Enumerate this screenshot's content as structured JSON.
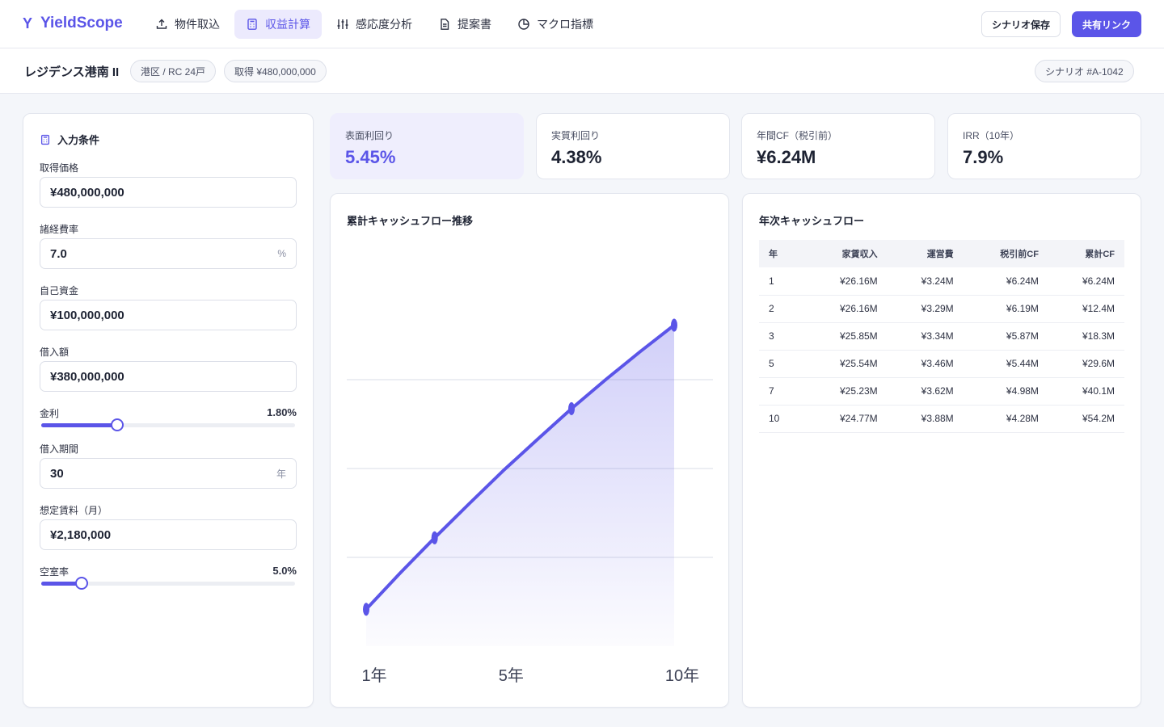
{
  "app": {
    "logo_mark": "Y",
    "name": "YieldScope",
    "accent": "#5b55e8"
  },
  "nav": [
    {
      "label": "物件取込",
      "icon": "upload-icon"
    },
    {
      "label": "収益計算",
      "icon": "calculator-icon",
      "active": true
    },
    {
      "label": "感応度分析",
      "icon": "sliders-icon"
    },
    {
      "label": "提案書",
      "icon": "document-icon"
    },
    {
      "label": "マクロ指標",
      "icon": "pie-chart-icon"
    }
  ],
  "actions": {
    "save": "シナリオ保存",
    "share": "共有リンク"
  },
  "property": {
    "title": "レジデンス港南 II",
    "chip_location": "港区 / RC 24戸",
    "chip_price": "取得 ¥480,000,000",
    "scenario": "シナリオ #A-1042"
  },
  "inputs": {
    "title": "入力条件",
    "acquisition_label": "取得価格",
    "acquisition_value": "¥480,000,000",
    "expense_label": "諸経費率",
    "expense_value": "7.0",
    "expense_unit": "%",
    "equity_label": "自己資金",
    "equity_value": "¥100,000,000",
    "loan_label": "借入額",
    "loan_value": "¥380,000,000",
    "rate_label": "金利",
    "rate_value": "1.80%",
    "rate_fraction": 0.3,
    "term_label": "借入期間",
    "term_value": "30",
    "term_unit": "年",
    "rent_label": "想定賃料（月）",
    "rent_value": "¥2,180,000",
    "vacancy_label": "空室率",
    "vacancy_value": "5.0%",
    "vacancy_fraction": 0.16
  },
  "kpis": [
    {
      "label": "表面利回り",
      "value": "5.45%"
    },
    {
      "label": "実質利回り",
      "value": "4.38%"
    },
    {
      "label": "年間CF（税引前）",
      "value": "¥6.24M"
    },
    {
      "label": "IRR（10年）",
      "value": "7.9%"
    }
  ],
  "chart_data": {
    "type": "area",
    "title": "累計キャッシュフロー推移",
    "x": [
      1,
      2,
      3,
      4,
      5,
      6,
      7,
      8,
      9,
      10
    ],
    "x_tick_labels": [
      {
        "x": 1,
        "label": "1年"
      },
      {
        "x": 5,
        "label": "5年"
      },
      {
        "x": 10,
        "label": "10年"
      }
    ],
    "series": [
      {
        "values": [
          6.24,
          12.4,
          18.3,
          24.0,
          29.6,
          34.9,
          40.1,
          45.0,
          49.7,
          54.2
        ],
        "markers_at": [
          1,
          3,
          7,
          10
        ]
      }
    ],
    "ylim": [
      0,
      60
    ],
    "grid": true,
    "color": "#5b55e8"
  },
  "cf_table": {
    "title": "年次キャッシュフロー",
    "headers": [
      "年",
      "家賃収入",
      "運営費",
      "税引前CF",
      "累計CF"
    ],
    "rows": [
      [
        "1",
        "¥26.16M",
        "¥3.24M",
        "¥6.24M",
        "¥6.24M"
      ],
      [
        "2",
        "¥26.16M",
        "¥3.29M",
        "¥6.19M",
        "¥12.4M"
      ],
      [
        "3",
        "¥25.85M",
        "¥3.34M",
        "¥5.87M",
        "¥18.3M"
      ],
      [
        "5",
        "¥25.54M",
        "¥3.46M",
        "¥5.44M",
        "¥29.6M"
      ],
      [
        "7",
        "¥25.23M",
        "¥3.62M",
        "¥4.98M",
        "¥40.1M"
      ],
      [
        "10",
        "¥24.77M",
        "¥3.88M",
        "¥4.28M",
        "¥54.2M"
      ]
    ]
  }
}
